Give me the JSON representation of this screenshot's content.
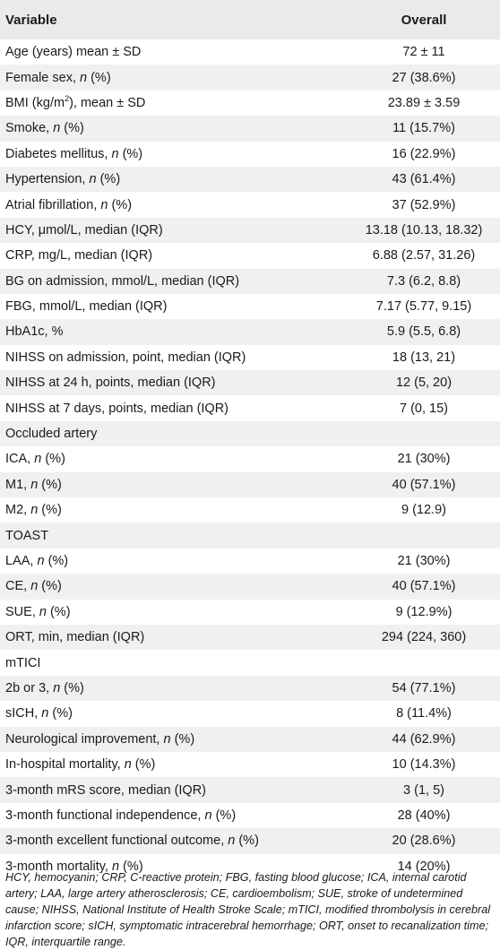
{
  "header": {
    "variable": "Variable",
    "overall": "Overall"
  },
  "rows": [
    {
      "pre": "Age (years) mean ± SD",
      "value": "72 ± 11"
    },
    {
      "pre": "Female sex, ",
      "it": "n",
      "post": " (%)",
      "value": "27 (38.6%)"
    },
    {
      "pre": "BMI (kg/m",
      "sup": "2",
      "post": "), mean ± SD",
      "value": "23.89 ± 3.59"
    },
    {
      "pre": "Smoke, ",
      "it": "n",
      "post": " (%)",
      "value": "11 (15.7%)"
    },
    {
      "pre": "Diabetes mellitus, ",
      "it": "n",
      "post": " (%)",
      "value": "16 (22.9%)"
    },
    {
      "pre": "Hypertension, ",
      "it": "n",
      "post": " (%)",
      "value": "43 (61.4%)"
    },
    {
      "pre": "Atrial fibrillation, ",
      "it": "n",
      "post": " (%)",
      "value": "37 (52.9%)"
    },
    {
      "pre": "HCY, μmol/L, median (IQR)",
      "value": "13.18 (10.13, 18.32)"
    },
    {
      "pre": "CRP, mg/L, median (IQR)",
      "value": "6.88 (2.57, 31.26)"
    },
    {
      "pre": "BG on admission, mmol/L, median (IQR)",
      "value": "7.3 (6.2, 8.8)"
    },
    {
      "pre": "FBG, mmol/L, median (IQR)",
      "value": "7.17 (5.77, 9.15)"
    },
    {
      "pre": "HbA1c, %",
      "value": "5.9 (5.5, 6.8)"
    },
    {
      "pre": "NIHSS on admission, point, median (IQR)",
      "value": "18 (13, 21)"
    },
    {
      "pre": "NIHSS at 24 h, points, median (IQR)",
      "value": "12 (5, 20)"
    },
    {
      "pre": "NIHSS at 7 days, points, median (IQR)",
      "value": "7 (0, 15)"
    },
    {
      "pre": "Occluded artery",
      "value": ""
    },
    {
      "pre": "ICA, ",
      "it": "n",
      "post": " (%)",
      "value": "21 (30%)"
    },
    {
      "pre": "M1, ",
      "it": "n",
      "post": " (%)",
      "value": "40 (57.1%)"
    },
    {
      "pre": "M2, ",
      "it": "n",
      "post": " (%)",
      "value": "9 (12.9)"
    },
    {
      "pre": "TOAST",
      "value": ""
    },
    {
      "pre": "LAA, ",
      "it": "n",
      "post": " (%)",
      "value": "21 (30%)"
    },
    {
      "pre": "CE, ",
      "it": "n",
      "post": " (%)",
      "value": "40 (57.1%)"
    },
    {
      "pre": "SUE, ",
      "it": "n",
      "post": " (%)",
      "value": "9 (12.9%)"
    },
    {
      "pre": "ORT, min, median (IQR)",
      "value": "294 (224, 360)"
    },
    {
      "pre": "mTICI",
      "value": ""
    },
    {
      "pre": "2b or 3, ",
      "it": "n",
      "post": " (%)",
      "value": "54 (77.1%)"
    },
    {
      "pre": "sICH, ",
      "it": "n",
      "post": " (%)",
      "value": "8 (11.4%)"
    },
    {
      "pre": "Neurological improvement, ",
      "it": "n",
      "post": " (%)",
      "value": "44 (62.9%)"
    },
    {
      "pre": "In-hospital mortality, ",
      "it": "n",
      "post": " (%)",
      "value": "10 (14.3%)"
    },
    {
      "pre": "3-month mRS score, median (IQR)",
      "value": "3 (1, 5)"
    },
    {
      "pre": "3-month functional independence, ",
      "it": "n",
      "post": " (%)",
      "value": "28 (40%)"
    },
    {
      "pre": "3-month excellent functional outcome, ",
      "it": "n",
      "post": " (%)",
      "value": "20 (28.6%)"
    },
    {
      "pre": "3-month mortality, ",
      "it": "n",
      "post": " (%)",
      "value": "14 (20%)"
    }
  ],
  "footnote": "HCY, hemocyanin; CRP, C-reactive protein; FBG, fasting blood glucose; ICA, internal carotid artery; LAA, large artery atherosclerosis; CE, cardioembolism; SUE, stroke of undetermined cause; NIHSS, National Institute of Health Stroke Scale; mTICI, modified thrombolysis in cerebral infarction score; sICH, symptomatic intracerebral hemorrhage; ORT, onset to recanalization time; IQR, interquartile range."
}
